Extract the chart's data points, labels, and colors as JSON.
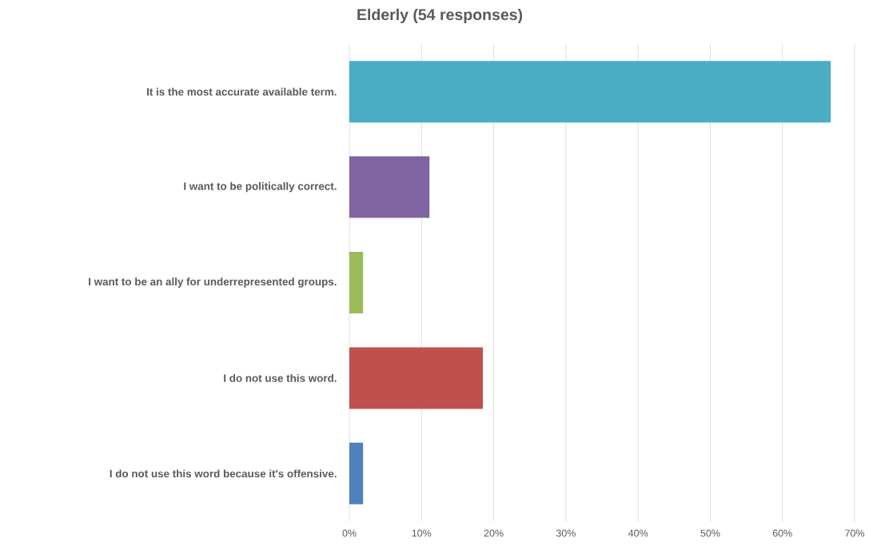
{
  "chart_data": {
    "type": "bar",
    "orientation": "horizontal",
    "title": "Elderly (54 responses)",
    "categories": [
      "It is the most accurate available term.",
      "I want to be politically correct.",
      "I want to be an ally for underrepresented groups.",
      "I do not use this word.",
      "I do not use this word because it's offensive."
    ],
    "values": [
      66.7,
      11.1,
      1.9,
      18.5,
      1.9
    ],
    "colors": [
      "#4bacc6",
      "#8064a2",
      "#9bbb59",
      "#c0504d",
      "#4f81bd"
    ],
    "xlim": [
      0,
      70
    ],
    "xticks": [
      {
        "value": 0,
        "label": "0%"
      },
      {
        "value": 10,
        "label": "10%"
      },
      {
        "value": 20,
        "label": "20%"
      },
      {
        "value": 30,
        "label": "30%"
      },
      {
        "value": 40,
        "label": "40%"
      },
      {
        "value": 50,
        "label": "50%"
      },
      {
        "value": 60,
        "label": "60%"
      },
      {
        "value": 70,
        "label": "70%"
      }
    ],
    "grid": "x"
  }
}
